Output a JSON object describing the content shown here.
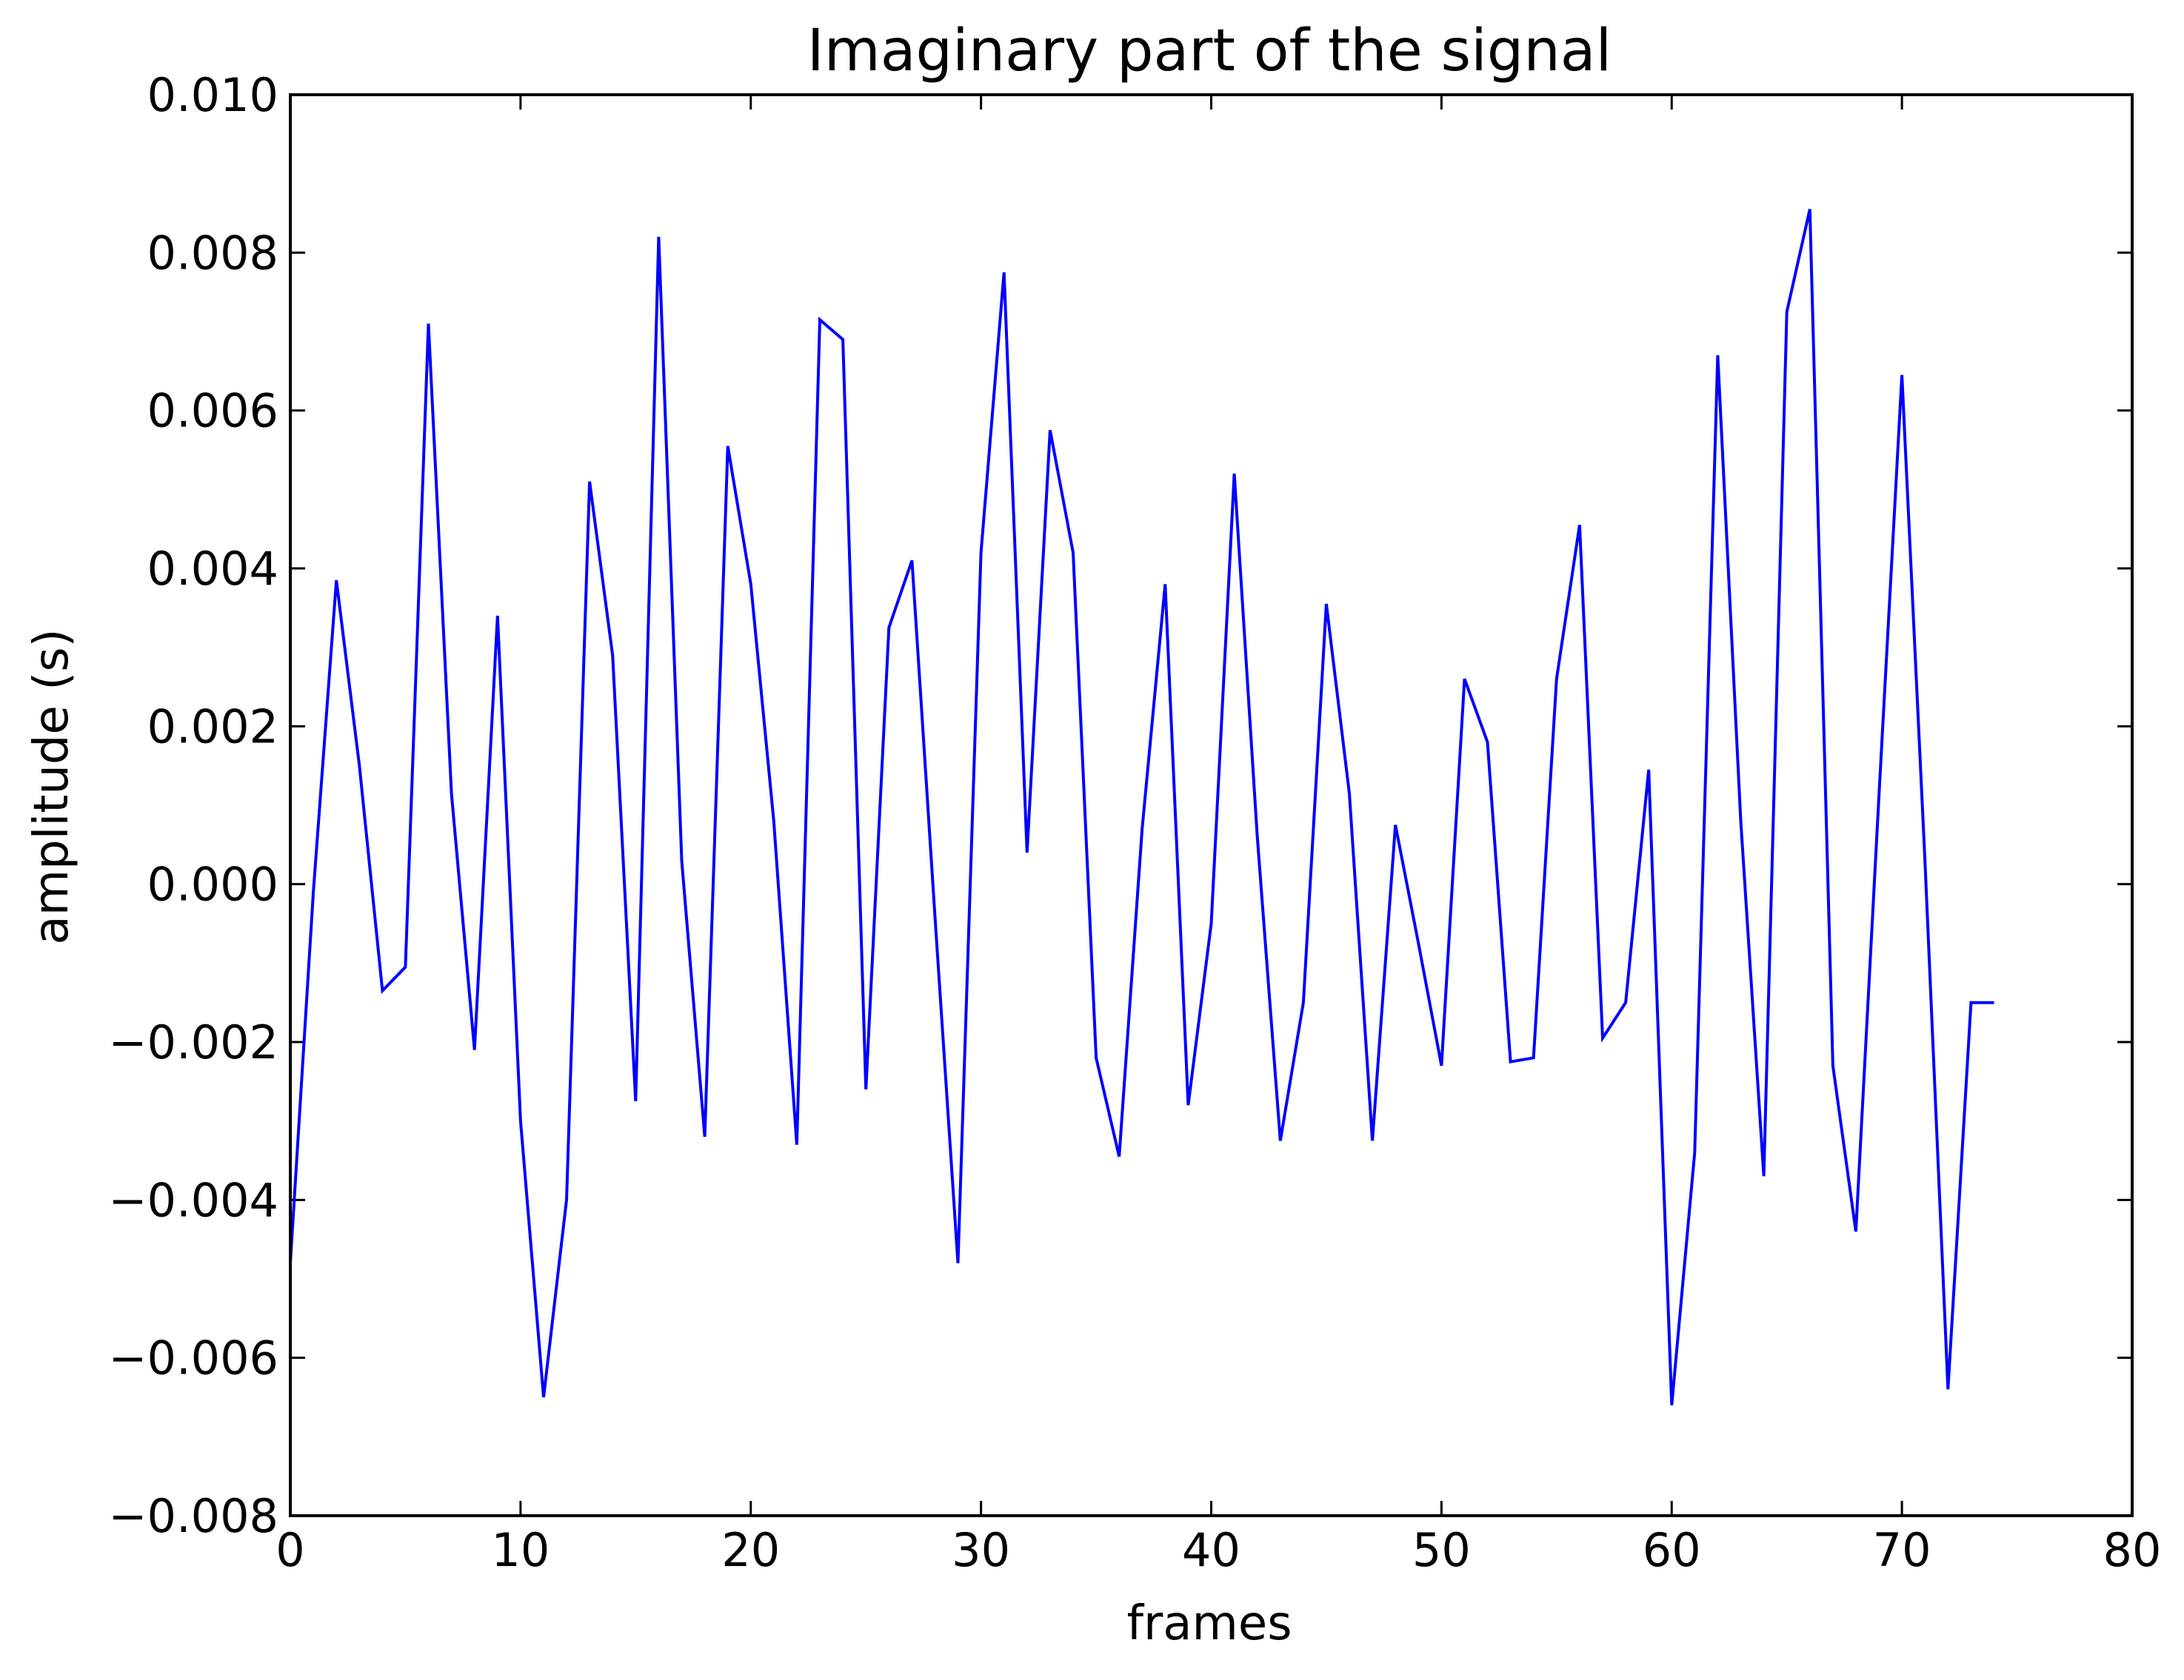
{
  "chart_data": {
    "type": "line",
    "title": "Imaginary part of the signal",
    "xlabel": "frames",
    "ylabel": "amplitude (s)",
    "xlim": [
      0,
      80
    ],
    "ylim": [
      -0.008,
      0.01
    ],
    "x_ticks": [
      0,
      10,
      20,
      30,
      40,
      50,
      60,
      70,
      80
    ],
    "x_tick_labels": [
      "0",
      "10",
      "20",
      "30",
      "40",
      "50",
      "60",
      "70",
      "80"
    ],
    "y_ticks": [
      -0.008,
      -0.006,
      -0.004,
      -0.002,
      0.0,
      0.002,
      0.004,
      0.006,
      0.008,
      0.01
    ],
    "y_tick_labels": [
      "−0.008",
      "−0.006",
      "−0.004",
      "−0.002",
      "0.000",
      "0.002",
      "0.004",
      "0.006",
      "0.008",
      "0.010"
    ],
    "grid": false,
    "legend": "none",
    "series": [
      {
        "color": "#0000ff",
        "x": [
          0,
          1,
          2,
          3,
          4,
          5,
          6,
          7,
          8,
          9,
          10,
          11,
          12,
          13,
          14,
          15,
          16,
          17,
          18,
          19,
          20,
          21,
          22,
          23,
          24,
          25,
          26,
          27,
          28,
          29,
          30,
          31,
          32,
          33,
          34,
          35,
          36,
          37,
          38,
          39,
          40,
          41,
          42,
          43,
          44,
          45,
          46,
          47,
          48,
          49,
          50,
          51,
          52,
          53,
          54,
          55,
          56,
          57,
          58,
          59,
          60,
          61,
          62,
          63,
          64,
          65,
          66,
          67,
          68,
          69,
          70,
          71,
          72,
          73,
          74
        ],
        "y": [
          -0.0048,
          -0.0001,
          0.00385,
          0.0015,
          -0.00135,
          -0.00105,
          0.0071,
          0.00115,
          -0.0021,
          0.0034,
          -0.003,
          -0.0065,
          -0.004,
          0.0051,
          0.0029,
          -0.00275,
          0.0082,
          0.0003,
          -0.0032,
          0.00555,
          0.0038,
          0.0008,
          -0.0033,
          0.00715,
          0.0069,
          -0.0026,
          0.00325,
          0.0041,
          -0.0004,
          -0.0048,
          0.0042,
          0.00775,
          0.0004,
          0.00575,
          0.0042,
          -0.0022,
          -0.00345,
          0.0007,
          0.0038,
          -0.0028,
          -0.0005,
          0.0052,
          0.0006,
          -0.00325,
          -0.0015,
          0.00355,
          0.00115,
          -0.00325,
          0.00075,
          -0.00075,
          -0.0023,
          0.0026,
          0.0018,
          -0.00225,
          -0.0022,
          0.0026,
          0.00455,
          -0.00195,
          -0.0015,
          0.00145,
          -0.0066,
          -0.0034,
          0.0067,
          0.0008,
          -0.0037,
          0.00725,
          0.00855,
          -0.0023,
          -0.0044,
          0.0011,
          0.00645,
          0.0003,
          -0.0064,
          -0.0015,
          -0.0015
        ]
      }
    ]
  }
}
